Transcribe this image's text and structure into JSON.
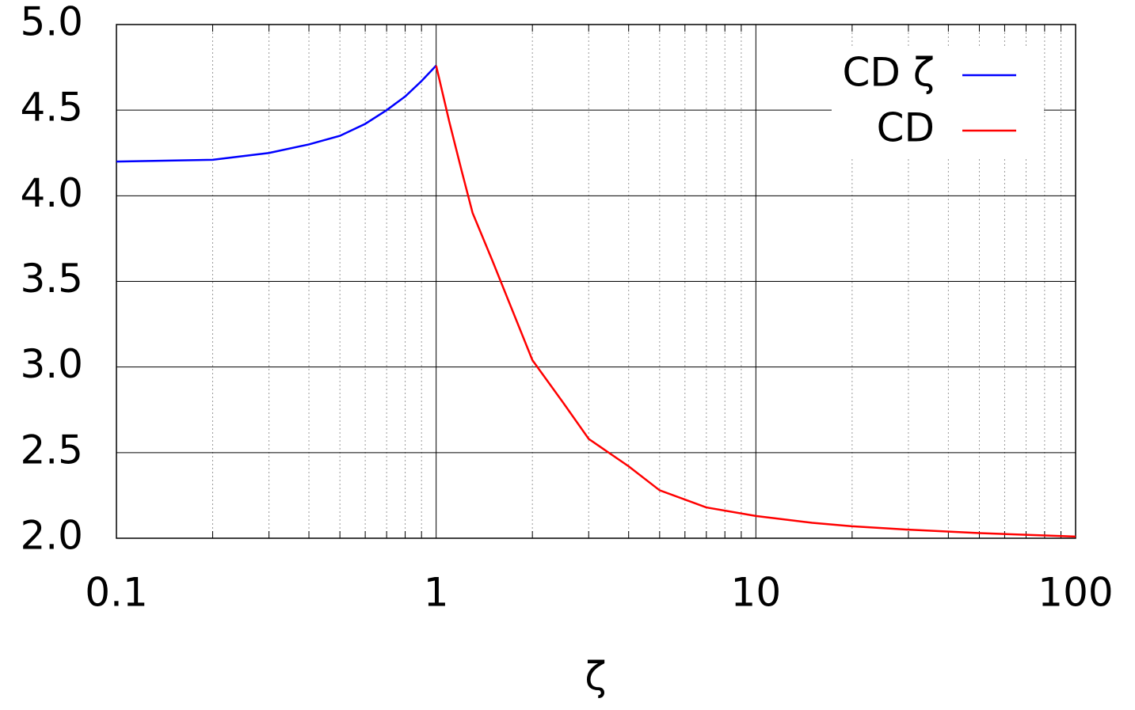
{
  "chart_data": {
    "type": "line",
    "xlabel": "ζ",
    "log_x": true,
    "grid": true,
    "minor_grid": true,
    "legend": "top-right",
    "xlim": [
      0.1,
      100
    ],
    "xticks": [
      0.1,
      1,
      10,
      100
    ],
    "ylim": [
      2,
      5
    ],
    "yticks": [
      {
        "value": 2,
        "label": "2.0"
      },
      2.5,
      {
        "value": 3,
        "label": "3.0"
      },
      3.5,
      {
        "value": 4,
        "label": "4.0"
      },
      4.5,
      {
        "value": 5,
        "label": "5.0"
      }
    ],
    "series": [
      {
        "name": "CD ζ",
        "color": "#0000ff",
        "x": [
          0.1,
          0.2,
          0.3,
          0.4,
          0.5,
          0.6,
          0.7,
          0.8,
          0.9,
          1
        ],
        "values": [
          4.2,
          4.21,
          4.25,
          4.3,
          4.35,
          4.42,
          4.5,
          4.58,
          4.67,
          4.76
        ]
      },
      {
        "name": "CD",
        "color": "#ff0000",
        "x": [
          1,
          1.1,
          1.2,
          1.3,
          1.5,
          2,
          2.5,
          3,
          4,
          5,
          7,
          10,
          15,
          20,
          30,
          50,
          100
        ],
        "values": [
          4.76,
          4.43,
          4.15,
          3.9,
          3.62,
          3.04,
          2.79,
          2.58,
          2.42,
          2.28,
          2.18,
          2.13,
          2.09,
          2.07,
          2.05,
          2.03,
          2.01
        ]
      }
    ]
  }
}
